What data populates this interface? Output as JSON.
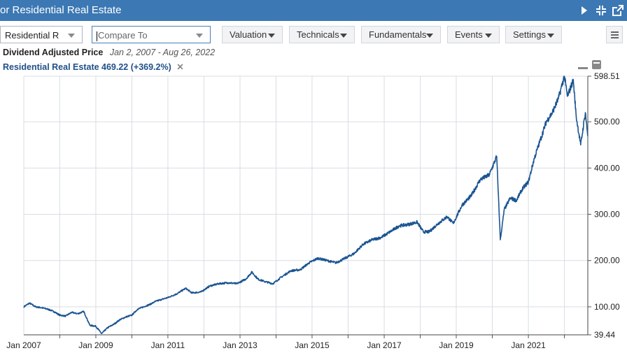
{
  "window": {
    "title": "or Residential Real Estate"
  },
  "toolbar": {
    "symbol_value": "Residential R",
    "compare_placeholder": "Compare To",
    "buttons": [
      "Valuation",
      "Technicals",
      "Fundamentals",
      "Events",
      "Settings"
    ]
  },
  "info": {
    "metric_label": "Dividend Adjusted Price",
    "date_range": "Jan 2, 2007 - Aug 26, 2022",
    "series_label": "Residential Real Estate 469.22 (+369.2%)",
    "remove_glyph": "✕"
  },
  "colors": {
    "titlebar": "#3c78b4",
    "series": "#1a5491",
    "grid": "#d9dde2"
  },
  "icons": [
    "play-icon",
    "compress-icon",
    "external-link-icon",
    "hamburger-menu-icon",
    "minimize-icon",
    "maximize-icon"
  ],
  "chart_data": {
    "type": "line",
    "x_tick_labels": [
      "Jan 2007",
      "Jan 2009",
      "Jan 2011",
      "Jan 2013",
      "Jan 2015",
      "Jan 2017",
      "Jan 2019",
      "Jan 2021"
    ],
    "y_tick_labels": [
      "598.51",
      "500.00",
      "400.00",
      "300.00",
      "200.00",
      "100.00",
      "39.44"
    ],
    "ylim": [
      39.44,
      598.51
    ],
    "xlim": [
      "2007-01-02",
      "2022-08-26"
    ],
    "grid": true,
    "series": [
      {
        "name": "Residential Real Estate",
        "points": [
          [
            "2007-01-02",
            100
          ],
          [
            "2007-03-01",
            108
          ],
          [
            "2007-05-01",
            100
          ],
          [
            "2007-07-01",
            98
          ],
          [
            "2007-09-01",
            95
          ],
          [
            "2007-11-01",
            90
          ],
          [
            "2008-01-01",
            82
          ],
          [
            "2008-03-01",
            80
          ],
          [
            "2008-05-01",
            88
          ],
          [
            "2008-07-01",
            85
          ],
          [
            "2008-09-01",
            90
          ],
          [
            "2008-10-01",
            75
          ],
          [
            "2008-11-01",
            60
          ],
          [
            "2009-01-01",
            58
          ],
          [
            "2009-03-01",
            42
          ],
          [
            "2009-05-01",
            55
          ],
          [
            "2009-07-01",
            62
          ],
          [
            "2009-09-01",
            72
          ],
          [
            "2009-11-01",
            78
          ],
          [
            "2010-01-01",
            82
          ],
          [
            "2010-03-01",
            95
          ],
          [
            "2010-05-01",
            100
          ],
          [
            "2010-07-01",
            105
          ],
          [
            "2010-09-01",
            112
          ],
          [
            "2011-01-01",
            120
          ],
          [
            "2011-04-01",
            128
          ],
          [
            "2011-07-01",
            140
          ],
          [
            "2011-09-01",
            130
          ],
          [
            "2011-12-01",
            132
          ],
          [
            "2012-03-01",
            145
          ],
          [
            "2012-06-01",
            150
          ],
          [
            "2012-09-01",
            152
          ],
          [
            "2012-12-01",
            150
          ],
          [
            "2013-03-01",
            160
          ],
          [
            "2013-05-01",
            175
          ],
          [
            "2013-07-01",
            160
          ],
          [
            "2013-09-01",
            155
          ],
          [
            "2013-12-01",
            150
          ],
          [
            "2014-03-01",
            165
          ],
          [
            "2014-06-01",
            178
          ],
          [
            "2014-09-01",
            180
          ],
          [
            "2014-12-01",
            195
          ],
          [
            "2015-03-01",
            205
          ],
          [
            "2015-06-01",
            200
          ],
          [
            "2015-09-01",
            195
          ],
          [
            "2015-12-01",
            205
          ],
          [
            "2016-03-01",
            215
          ],
          [
            "2016-06-01",
            235
          ],
          [
            "2016-09-01",
            245
          ],
          [
            "2016-12-01",
            250
          ],
          [
            "2017-03-01",
            262
          ],
          [
            "2017-06-01",
            275
          ],
          [
            "2017-09-01",
            278
          ],
          [
            "2017-12-01",
            283
          ],
          [
            "2018-02-01",
            262
          ],
          [
            "2018-04-01",
            262
          ],
          [
            "2018-07-01",
            280
          ],
          [
            "2018-10-01",
            295
          ],
          [
            "2018-12-01",
            280
          ],
          [
            "2019-03-01",
            320
          ],
          [
            "2019-06-01",
            340
          ],
          [
            "2019-09-01",
            375
          ],
          [
            "2019-12-01",
            385
          ],
          [
            "2020-02-15",
            425
          ],
          [
            "2020-03-23",
            245
          ],
          [
            "2020-05-01",
            310
          ],
          [
            "2020-07-01",
            335
          ],
          [
            "2020-09-01",
            330
          ],
          [
            "2020-11-01",
            355
          ],
          [
            "2021-01-01",
            370
          ],
          [
            "2021-03-01",
            420
          ],
          [
            "2021-05-01",
            460
          ],
          [
            "2021-07-01",
            500
          ],
          [
            "2021-09-01",
            520
          ],
          [
            "2021-11-01",
            550
          ],
          [
            "2021-12-31",
            598.51
          ],
          [
            "2022-02-01",
            555
          ],
          [
            "2022-04-01",
            590
          ],
          [
            "2022-05-01",
            510
          ],
          [
            "2022-06-15",
            450
          ],
          [
            "2022-08-01",
            520
          ],
          [
            "2022-08-26",
            469.22
          ]
        ]
      }
    ]
  }
}
